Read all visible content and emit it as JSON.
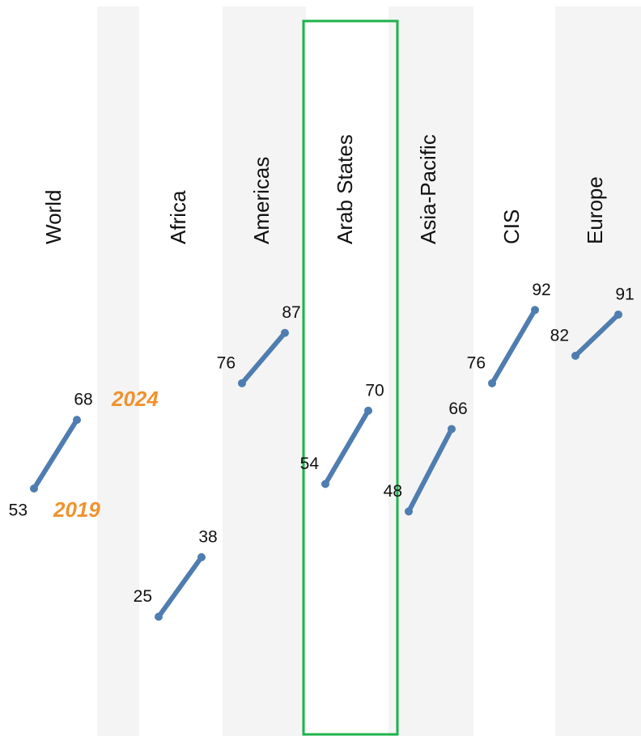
{
  "chart_data": {
    "type": "slope",
    "categories": [
      "World",
      "Africa",
      "Americas",
      "Arab States",
      "Asia-Pacific",
      "CIS",
      "Europe"
    ],
    "series": [
      {
        "name": "2019",
        "color": "#4f7db0",
        "values": [
          53,
          25,
          76,
          54,
          48,
          76,
          82
        ]
      },
      {
        "name": "2024",
        "color": "#4f7db0",
        "values": [
          68,
          38,
          87,
          70,
          66,
          92,
          91
        ]
      }
    ],
    "legend_color": "#f0922e",
    "highlight": "Arab States",
    "highlight_color": "#1db34a",
    "ylim": [
      0,
      100
    ]
  }
}
